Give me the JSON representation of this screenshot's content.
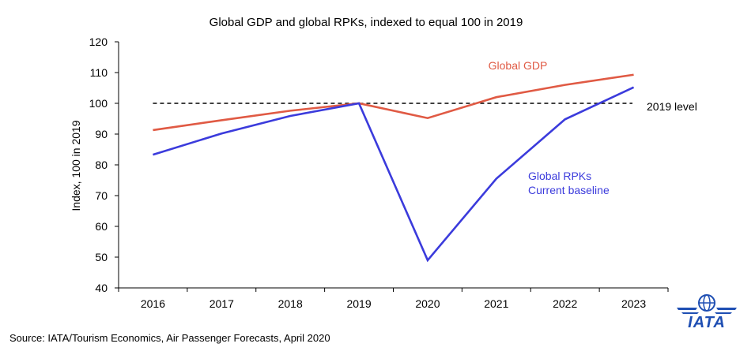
{
  "chart_data": {
    "type": "line",
    "title": "Global GDP and global RPKs, indexed to equal 100 in 2019",
    "xlabel": "",
    "ylabel": "Index, 100 in 2019",
    "categories": [
      "2016",
      "2017",
      "2018",
      "2019",
      "2020",
      "2021",
      "2022",
      "2023"
    ],
    "ylim": [
      40,
      120
    ],
    "yticks": [
      40,
      50,
      60,
      70,
      80,
      90,
      100,
      110,
      120
    ],
    "grid": false,
    "series": [
      {
        "name": "Global GDP",
        "color": "#e05a44",
        "values": [
          91.3,
          94.5,
          97.6,
          100,
          95.2,
          102,
          106,
          109.3
        ]
      },
      {
        "name": "Global RPKs Current baseline",
        "color": "#3b3bdc",
        "values": [
          83.3,
          90.2,
          95.9,
          100,
          49,
          75.5,
          94.8,
          105.2
        ]
      }
    ],
    "reference_line": {
      "label": "2019 level",
      "value": 100,
      "color": "#000000"
    },
    "annotations": {
      "gdp_label": "Global GDP",
      "rpk_label_line1": "Global RPKs",
      "rpk_label_line2": "Current baseline",
      "level_label": "2019 level"
    }
  },
  "footer": {
    "source": "Source: IATA/Tourism Economics, Air Passenger Forecasts, April 2020",
    "logo_text": "IATA"
  }
}
